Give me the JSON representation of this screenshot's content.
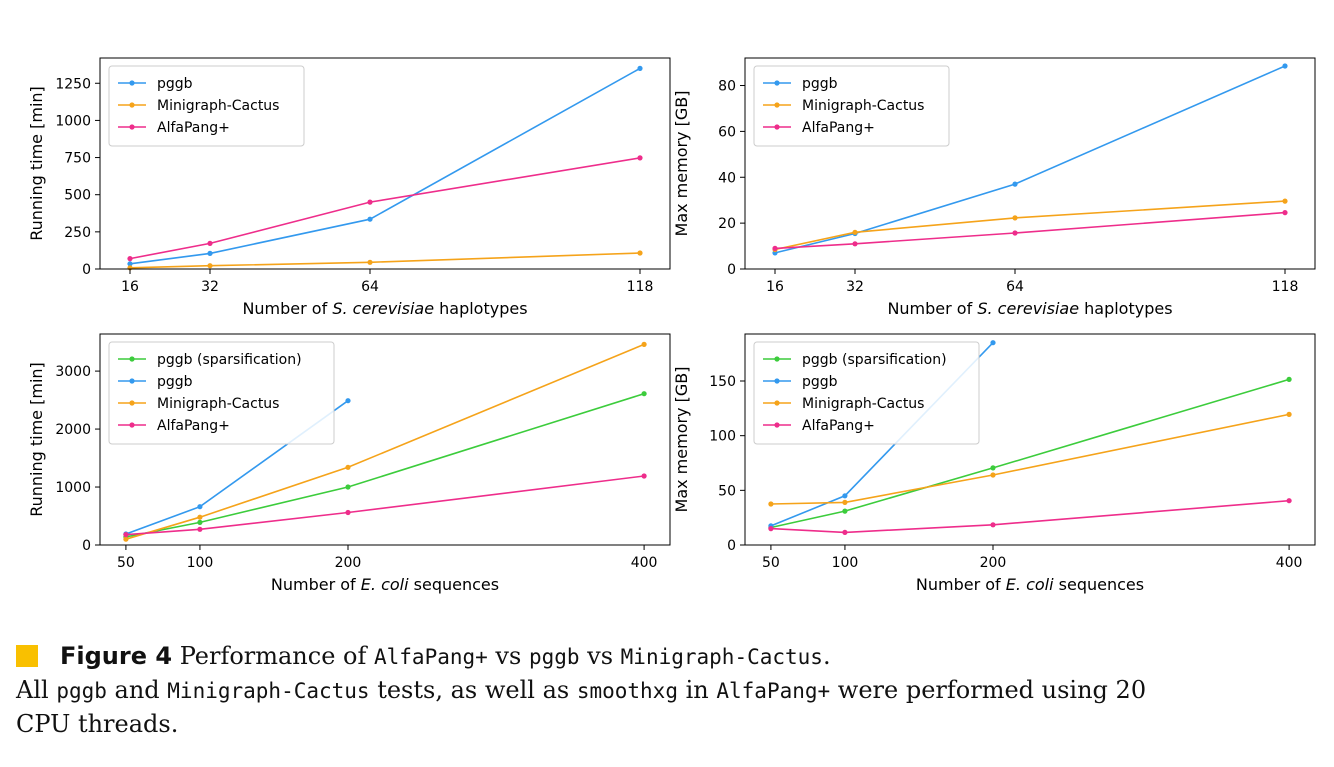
{
  "chart_data": [
    {
      "type": "line",
      "xlabel_pre": "Number of ",
      "xlabel_italic": "S. cerevisiae",
      "xlabel_post": " haplotypes",
      "ylabel": "Running time [min]",
      "xlim": [
        10,
        124
      ],
      "ylim": [
        0,
        1420
      ],
      "xticks": [
        16,
        32,
        64,
        118
      ],
      "yticks": [
        0,
        250,
        500,
        750,
        1000,
        1250
      ],
      "legend_position": "top-left",
      "series": [
        {
          "name": "pggb",
          "color": "#3399ee",
          "x": [
            16,
            32,
            64,
            118
          ],
          "y": [
            35,
            105,
            335,
            1350
          ]
        },
        {
          "name": "Minigraph-Cactus",
          "color": "#f5a31a",
          "x": [
            16,
            32,
            64,
            118
          ],
          "y": [
            8,
            22,
            45,
            108
          ]
        },
        {
          "name": "AlfaPang+",
          "color": "#ee2d8b",
          "x": [
            16,
            32,
            64,
            118
          ],
          "y": [
            70,
            172,
            450,
            748
          ]
        }
      ]
    },
    {
      "type": "line",
      "xlabel_pre": "Number of ",
      "xlabel_italic": "S. cerevisiae",
      "xlabel_post": " haplotypes",
      "ylabel": "Max memory [GB]",
      "xlim": [
        10,
        124
      ],
      "ylim": [
        0,
        92
      ],
      "xticks": [
        16,
        32,
        64,
        118
      ],
      "yticks": [
        0,
        20,
        40,
        60,
        80
      ],
      "legend_position": "top-left",
      "series": [
        {
          "name": "pggb",
          "color": "#3399ee",
          "x": [
            16,
            32,
            64,
            118
          ],
          "y": [
            7,
            15.5,
            37,
            88.5
          ]
        },
        {
          "name": "Minigraph-Cactus",
          "color": "#f5a31a",
          "x": [
            16,
            32,
            64,
            118
          ],
          "y": [
            8.5,
            16,
            22.3,
            29.6
          ]
        },
        {
          "name": "AlfaPang+",
          "color": "#ee2d8b",
          "x": [
            16,
            32,
            64,
            118
          ],
          "y": [
            9,
            11,
            15.7,
            24.6
          ]
        }
      ]
    },
    {
      "type": "line",
      "xlabel_pre": "Number of ",
      "xlabel_italic": "E. coli",
      "xlabel_post": " sequences",
      "ylabel": "Running time [min]",
      "xlim": [
        32.5,
        417.5
      ],
      "ylim": [
        0,
        3640
      ],
      "xticks": [
        50,
        100,
        200,
        400
      ],
      "yticks": [
        0,
        1000,
        2000,
        3000
      ],
      "legend_position": "top-left",
      "series": [
        {
          "name": "pggb (sparsification)",
          "color": "#3ccc3c",
          "x": [
            50,
            100,
            200,
            400
          ],
          "y": [
            140,
            390,
            1000,
            2610
          ]
        },
        {
          "name": "pggb",
          "color": "#3399ee",
          "x": [
            50,
            100,
            200
          ],
          "y": [
            190,
            660,
            2490
          ]
        },
        {
          "name": "Minigraph-Cactus",
          "color": "#f5a31a",
          "x": [
            50,
            100,
            200,
            400
          ],
          "y": [
            100,
            480,
            1340,
            3460
          ]
        },
        {
          "name": "AlfaPang+",
          "color": "#ee2d8b",
          "x": [
            50,
            100,
            200,
            400
          ],
          "y": [
            180,
            270,
            560,
            1190
          ]
        }
      ]
    },
    {
      "type": "line",
      "xlabel_pre": "Number of ",
      "xlabel_italic": "E. coli",
      "xlabel_post": " sequences",
      "ylabel": "Max memory [GB]",
      "xlim": [
        32.5,
        417.5
      ],
      "ylim": [
        0,
        193
      ],
      "xticks": [
        50,
        100,
        200,
        400
      ],
      "yticks": [
        0,
        50,
        100,
        150
      ],
      "legend_position": "top-left",
      "series": [
        {
          "name": "pggb (sparsification)",
          "color": "#3ccc3c",
          "x": [
            50,
            100,
            200,
            400
          ],
          "y": [
            16,
            31,
            70.5,
            151.5
          ]
        },
        {
          "name": "pggb",
          "color": "#3399ee",
          "x": [
            50,
            100,
            200
          ],
          "y": [
            17.5,
            45,
            185
          ]
        },
        {
          "name": "Minigraph-Cactus",
          "color": "#f5a31a",
          "x": [
            50,
            100,
            200,
            400
          ],
          "y": [
            37.5,
            39,
            64,
            119.5
          ]
        },
        {
          "name": "AlfaPang+",
          "color": "#ee2d8b",
          "x": [
            50,
            100,
            200,
            400
          ],
          "y": [
            15,
            11.5,
            18.5,
            40.5
          ]
        }
      ]
    }
  ],
  "caption": {
    "label": "Figure 4",
    "marker_color": "#f9c000",
    "title_pre": " Performance of ",
    "title_code1": "AlfaPang+",
    "title_mid1": " vs ",
    "title_code2": "pggb",
    "title_mid2": " vs ",
    "title_code3": "Minigraph-Cactus",
    "title_end": ".",
    "line2_pre": "All ",
    "line2_code1": "pggb",
    "line2_mid1": " and ",
    "line2_code2": "Minigraph-Cactus",
    "line2_mid2": " tests, as well as ",
    "line2_code3": "smoothxg",
    "line2_mid3": " in ",
    "line2_code4": "AlfaPang+",
    "line2_end": " were performed using 20",
    "line3": "CPU threads."
  }
}
